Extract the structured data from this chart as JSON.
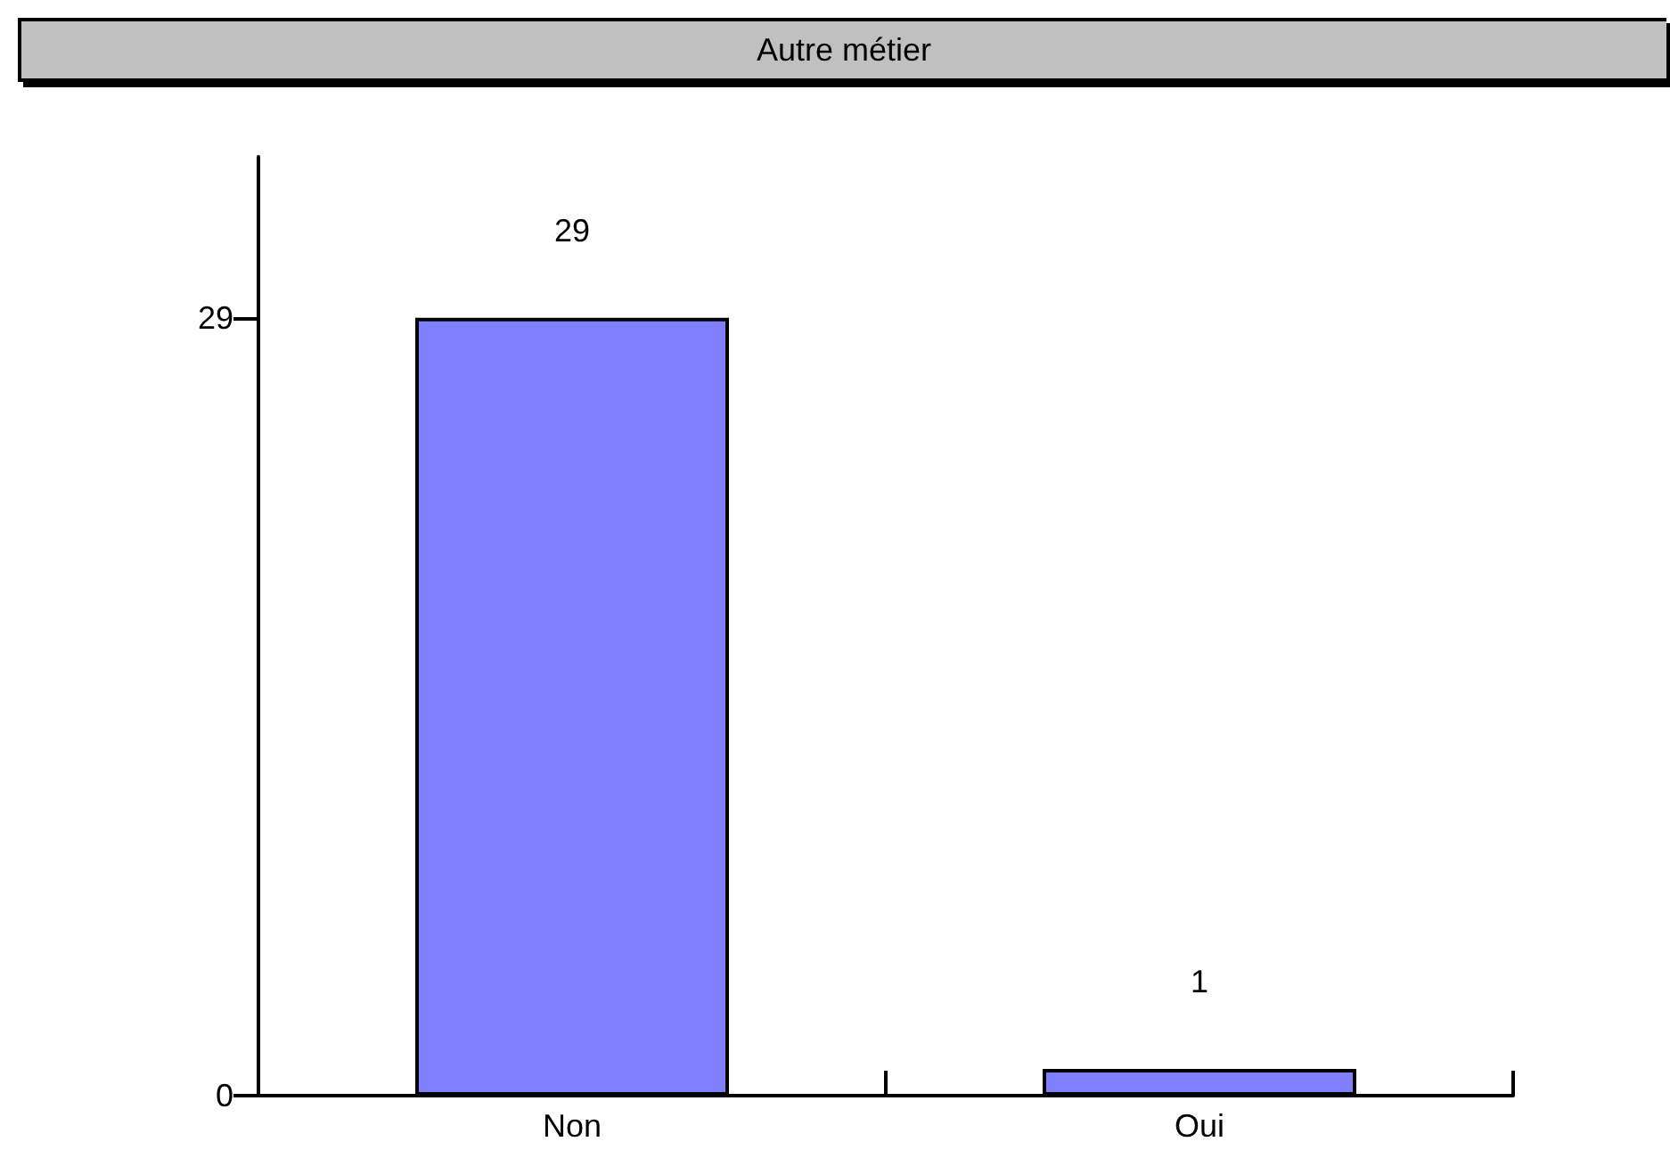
{
  "chart_data": {
    "type": "bar",
    "title": "Autre métier",
    "categories": [
      "Non",
      "Oui"
    ],
    "values": [
      29,
      1
    ],
    "color": "#8080ff",
    "ylim": [
      0,
      35
    ],
    "yticks": [
      0,
      29
    ],
    "data_labels": true
  }
}
